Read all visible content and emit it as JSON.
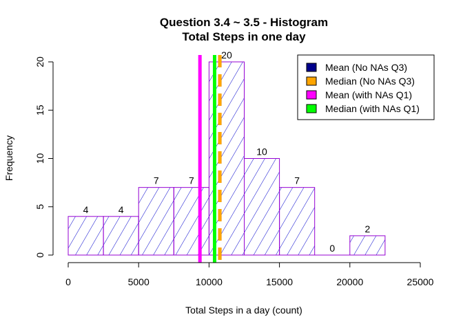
{
  "chart_data": {
    "type": "bar",
    "title_line1": "Question 3.4 ~ 3.5 - Histogram",
    "title_line2": "Total Steps in one day",
    "xlabel": "Total Steps in a day (count)",
    "ylabel": "Frequency",
    "xlim": [
      0,
      25000
    ],
    "ylim": [
      0,
      20
    ],
    "x_ticks": [
      0,
      5000,
      10000,
      15000,
      20000,
      25000
    ],
    "y_ticks": [
      0,
      5,
      10,
      15,
      20
    ],
    "bin_width": 2500,
    "bins": [
      {
        "start": 0,
        "end": 2500,
        "count": 4
      },
      {
        "start": 2500,
        "end": 5000,
        "count": 4
      },
      {
        "start": 5000,
        "end": 7500,
        "count": 7
      },
      {
        "start": 7500,
        "end": 10000,
        "count": 7
      },
      {
        "start": 10000,
        "end": 12500,
        "count": 20
      },
      {
        "start": 12500,
        "end": 15000,
        "count": 10
      },
      {
        "start": 15000,
        "end": 17500,
        "count": 7
      },
      {
        "start": 17500,
        "end": 20000,
        "count": 0
      },
      {
        "start": 20000,
        "end": 22500,
        "count": 2
      }
    ],
    "bar_border_color": "#9400D3",
    "hatch_color": "#0000CD",
    "vlines": [
      {
        "name": "Mean (No NAs Q3)",
        "value": 10766,
        "color": "#00008B",
        "style": "dashed"
      },
      {
        "name": "Median (No NAs Q3)",
        "value": 10766,
        "color": "#FFA500",
        "style": "dashed"
      },
      {
        "name": "Mean (with NAs Q1)",
        "value": 9354,
        "color": "#FF00FF",
        "style": "solid"
      },
      {
        "name": "Median (with NAs Q1)",
        "value": 10395,
        "color": "#00FF00",
        "style": "solid"
      }
    ],
    "legend_position": "top-right"
  }
}
